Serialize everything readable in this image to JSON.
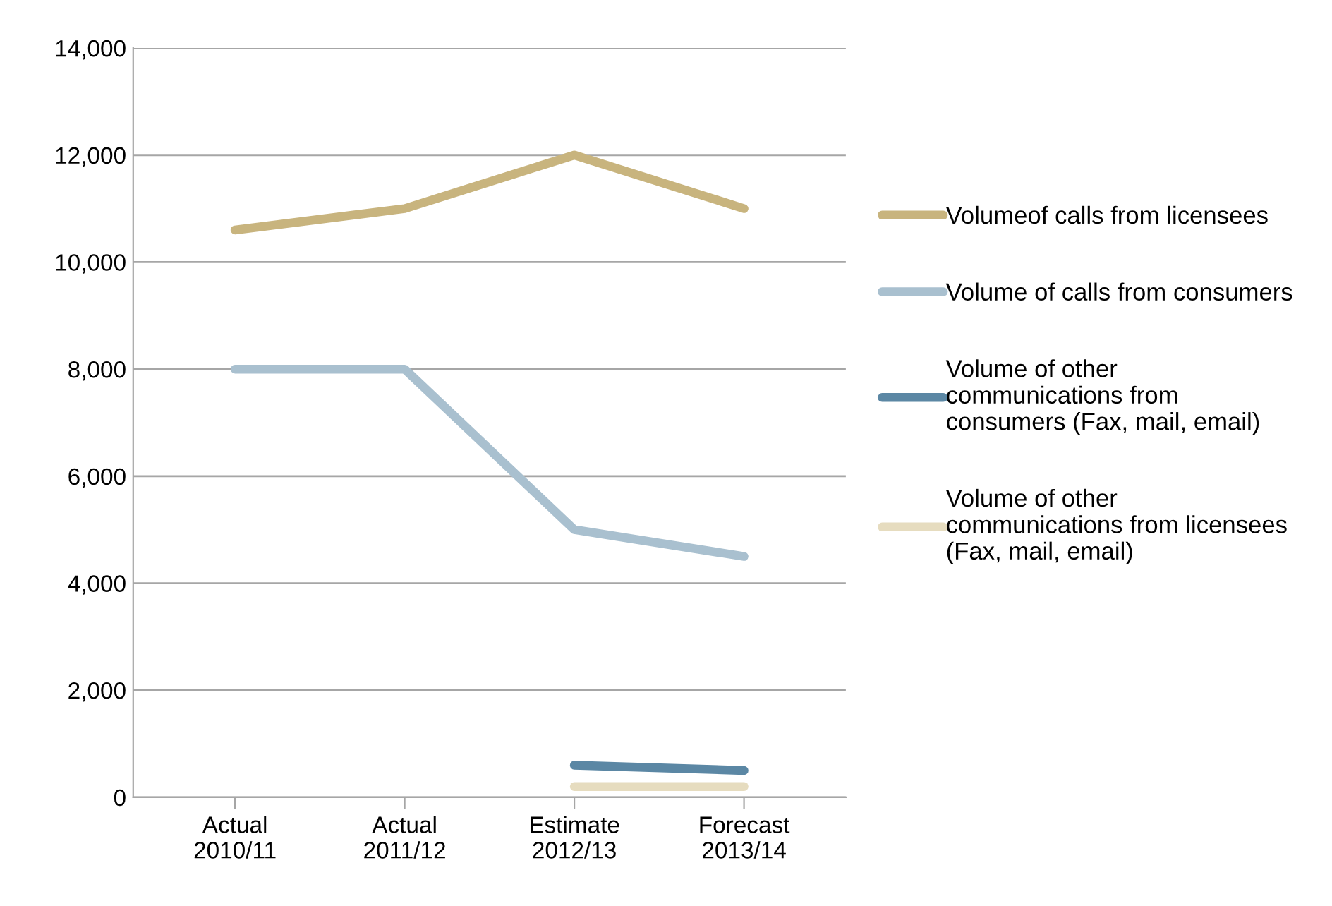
{
  "chart_data": {
    "type": "line",
    "categories": [
      "Actual\n2010/11",
      "Actual\n2011/12",
      "Estimate\n2012/13",
      "Forecast\n2013/14"
    ],
    "series": [
      {
        "name": "Volumeof calls from licensees",
        "color": "#c8b47e",
        "values": [
          10600,
          11000,
          12000,
          11000
        ]
      },
      {
        "name": "Volume of calls from consumers",
        "color": "#a9c0cf",
        "values": [
          8000,
          8000,
          5000,
          4500
        ]
      },
      {
        "name": "Volume of other\ncommunications from\nconsumers (Fax, mail, email)",
        "color": "#5b87a4",
        "values": [
          null,
          null,
          600,
          500
        ]
      },
      {
        "name": "Volume of other\ncommunications from licensees\n(Fax, mail, email)",
        "color": "#e6dcbf",
        "values": [
          null,
          null,
          200,
          200
        ]
      }
    ],
    "ylim": [
      0,
      14000
    ],
    "yticks": [
      {
        "value": 0,
        "label": "0"
      },
      {
        "value": 2000,
        "label": "2,000"
      },
      {
        "value": 4000,
        "label": "4,000"
      },
      {
        "value": 6000,
        "label": "6,000"
      },
      {
        "value": 8000,
        "label": "8,000"
      },
      {
        "value": 10000,
        "label": "10,000"
      },
      {
        "value": 12000,
        "label": "12,000"
      },
      {
        "value": 14000,
        "label": "14,000"
      }
    ],
    "grid": "y",
    "legend": "right",
    "marker": "none",
    "line_style": "solid"
  }
}
